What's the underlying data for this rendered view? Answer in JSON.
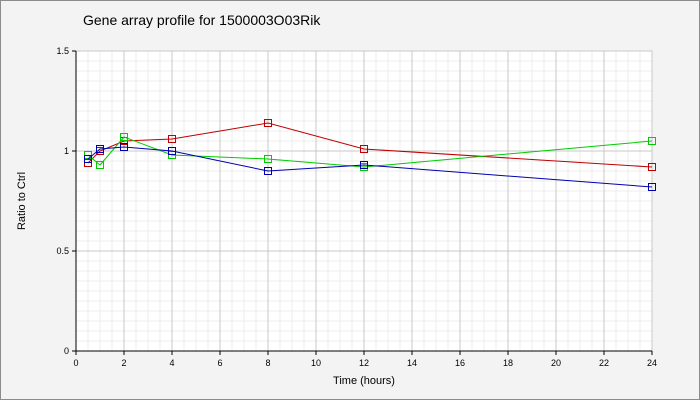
{
  "chart_data": {
    "type": "line",
    "title": "Gene array profile for 1500003O03Rik",
    "xlabel": "Time (hours)",
    "ylabel": "Ratio to Ctrl",
    "xlim": [
      0,
      24
    ],
    "ylim": [
      0,
      1.5
    ],
    "x_ticks": [
      "0",
      "2",
      "4",
      "6",
      "8",
      "10",
      "12",
      "14",
      "16",
      "18",
      "20",
      "22",
      "24"
    ],
    "y_ticks": [
      "0",
      "0.5",
      "1",
      "1.5"
    ],
    "grid": true,
    "marker": "square",
    "series": [
      {
        "color": "#c00000",
        "x": [
          0.5,
          1,
          2,
          4,
          8,
          12,
          24
        ],
        "values": [
          0.94,
          1.0,
          1.05,
          1.06,
          1.14,
          1.01,
          0.92
        ]
      },
      {
        "color": "#00cc00",
        "x": [
          0.5,
          1,
          2,
          4,
          8,
          12,
          24
        ],
        "values": [
          0.98,
          0.93,
          1.07,
          0.98,
          0.96,
          0.92,
          1.05
        ]
      },
      {
        "color": "#0000b0",
        "x": [
          0.5,
          1,
          2,
          4,
          8,
          12,
          24
        ],
        "values": [
          0.96,
          1.01,
          1.02,
          1.0,
          0.9,
          0.93,
          0.82
        ]
      }
    ]
  }
}
